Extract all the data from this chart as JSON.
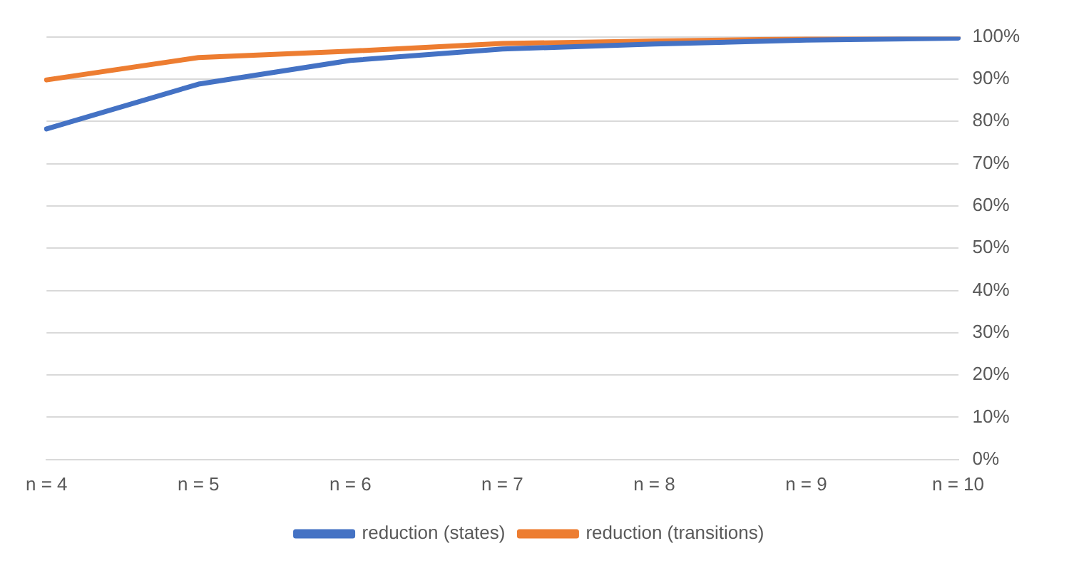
{
  "chart_data": {
    "type": "line",
    "categories": [
      "n = 4",
      "n = 5",
      "n = 6",
      "n = 7",
      "n = 8",
      "n = 9",
      "n = 10"
    ],
    "series": [
      {
        "name": "reduction (states)",
        "color": "#4472c4",
        "values": [
          78.2,
          88.8,
          94.4,
          97.1,
          98.3,
          99.2,
          99.7
        ]
      },
      {
        "name": "reduction (transitions)",
        "color": "#ed7d31",
        "values": [
          89.8,
          95.1,
          96.6,
          98.4,
          99.0,
          99.5,
          99.8
        ]
      }
    ],
    "ylim": [
      0,
      100
    ],
    "yticks": [
      {
        "value": 0,
        "label": "0%"
      },
      {
        "value": 10,
        "label": "10%"
      },
      {
        "value": 20,
        "label": "20%"
      },
      {
        "value": 30,
        "label": "30%"
      },
      {
        "value": 40,
        "label": "40%"
      },
      {
        "value": 50,
        "label": "50%"
      },
      {
        "value": 60,
        "label": "60%"
      },
      {
        "value": 70,
        "label": "70%"
      },
      {
        "value": 80,
        "label": "80%"
      },
      {
        "value": 90,
        "label": "90%"
      },
      {
        "value": 100,
        "label": "100%"
      }
    ],
    "grid": "y",
    "legend": "bottom",
    "marker": "none",
    "line_style": "solid"
  }
}
